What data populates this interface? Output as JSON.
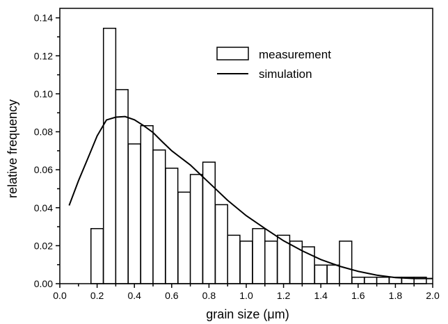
{
  "chart_data": {
    "type": "bar",
    "xlabel": "grain size (μm)",
    "ylabel": "relative frequency",
    "xlim": [
      0.0,
      2.0
    ],
    "ylim": [
      0.0,
      0.145
    ],
    "x_ticks": [
      0.0,
      0.2,
      0.4,
      0.6,
      0.8,
      1.0,
      1.2,
      1.4,
      1.6,
      1.8,
      2.0
    ],
    "x_tick_labels": [
      "0.0",
      "0.2",
      "0.4",
      "0.6",
      "0.8",
      "1.0",
      "1.2",
      "1.4",
      "1.6",
      "1.8",
      "2.0"
    ],
    "y_ticks": [
      0.0,
      0.02,
      0.04,
      0.06,
      0.08,
      0.1,
      0.12,
      0.14
    ],
    "y_tick_labels": [
      "0.00",
      "0.02",
      "0.04",
      "0.06",
      "0.08",
      "0.10",
      "0.12",
      "0.14"
    ],
    "legend": {
      "placement": "top-right"
    },
    "series": [
      {
        "name": "measurement",
        "type": "bar",
        "bin_width": 0.066,
        "x": [
          0.2,
          0.267,
          0.333,
          0.4,
          0.467,
          0.533,
          0.6,
          0.667,
          0.733,
          0.8,
          0.867,
          0.933,
          1.0,
          1.067,
          1.133,
          1.2,
          1.267,
          1.333,
          1.4,
          1.467,
          1.533,
          1.6,
          1.667,
          1.733,
          1.8,
          1.867,
          1.933
        ],
        "values": [
          0.029,
          0.1345,
          0.1022,
          0.0736,
          0.0832,
          0.0704,
          0.0608,
          0.0482,
          0.0575,
          0.064,
          0.0416,
          0.0255,
          0.0224,
          0.029,
          0.0224,
          0.0255,
          0.0224,
          0.0194,
          0.0098,
          0.0098,
          0.0224,
          0.0034,
          0.0034,
          0.0034,
          0.0034,
          0.0034,
          0.0034
        ]
      },
      {
        "name": "simulation",
        "type": "line",
        "x": [
          0.05,
          0.1,
          0.15,
          0.2,
          0.25,
          0.3,
          0.35,
          0.4,
          0.45,
          0.5,
          0.55,
          0.6,
          0.7,
          0.8,
          0.9,
          1.0,
          1.1,
          1.2,
          1.3,
          1.4,
          1.5,
          1.6,
          1.7,
          1.8,
          1.9,
          2.0
        ],
        "values": [
          0.0412,
          0.0542,
          0.0659,
          0.0778,
          0.0862,
          0.0877,
          0.088,
          0.0863,
          0.0832,
          0.0796,
          0.0747,
          0.07,
          0.0625,
          0.0532,
          0.0439,
          0.0358,
          0.0291,
          0.0226,
          0.0173,
          0.0127,
          0.0092,
          0.0065,
          0.0045,
          0.0032,
          0.0027,
          0.0027
        ]
      }
    ]
  }
}
